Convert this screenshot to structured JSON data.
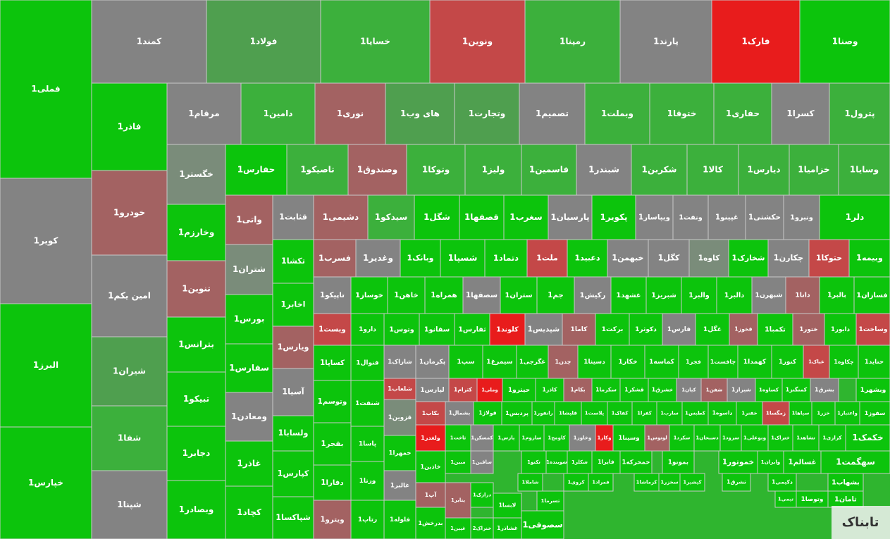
{
  "tiles": [
    {
      "label": "فملی1",
      "color": "#0cc40c"
    },
    {
      "label": "کویر1",
      "color": "#838383"
    },
    {
      "label": "البرز1",
      "color": "#0cc40c"
    },
    {
      "label": "خپارس1",
      "color": "#0cc40c"
    },
    {
      "label": "کمند1",
      "color": "#838383"
    },
    {
      "label": "فولاد1",
      "color": "#4f9f4f"
    },
    {
      "label": "خساپا1",
      "color": "#3cb03c"
    },
    {
      "label": "ونوین1",
      "color": "#c44848"
    },
    {
      "label": "رمپنا1",
      "color": "#3cb03c"
    },
    {
      "label": "پارند1",
      "color": "#838383"
    },
    {
      "label": "فارک1",
      "color": "#e81c1c"
    },
    {
      "label": "وصنا1",
      "color": "#0cc40c"
    },
    {
      "label": "فاذر1",
      "color": "#0cc40c"
    },
    {
      "label": "خودرو1",
      "color": "#a36262"
    },
    {
      "label": "امین یکم1",
      "color": "#838383"
    },
    {
      "label": "شیران1",
      "color": "#4f9f4f"
    },
    {
      "label": "شفا1",
      "color": "#3cb03c"
    },
    {
      "label": "شپنا1",
      "color": "#838383"
    },
    {
      "label": "مرقام1",
      "color": "#838383"
    },
    {
      "label": "دامین1",
      "color": "#3cb03c"
    },
    {
      "label": "نوری1",
      "color": "#a36262"
    },
    {
      "label": "های وب1",
      "color": "#4f9f4f"
    },
    {
      "label": "وتجارت1",
      "color": "#4f9f4f"
    },
    {
      "label": "تصمیم1",
      "color": "#838383"
    },
    {
      "label": "وبملت1",
      "color": "#3cb03c"
    },
    {
      "label": "ختوقا1",
      "color": "#3cb03c"
    },
    {
      "label": "حفاری1",
      "color": "#3cb03c"
    },
    {
      "label": "کسرا1",
      "color": "#838383"
    },
    {
      "label": "پترول1",
      "color": "#3cb03c"
    },
    {
      "label": "خگستر1",
      "color": "#7a8c7a"
    },
    {
      "label": "وخارزم1",
      "color": "#0cc40c"
    },
    {
      "label": "تنوین1",
      "color": "#a36262"
    },
    {
      "label": "بترانس1",
      "color": "#0cc40c"
    },
    {
      "label": "تبیکو1",
      "color": "#0cc40c"
    },
    {
      "label": "دجابر1",
      "color": "#0cc40c"
    },
    {
      "label": "وبصادر1",
      "color": "#0cc40c"
    },
    {
      "label": "حفارس1",
      "color": "#0cc40c"
    },
    {
      "label": "تاصیکو1",
      "color": "#3cb03c"
    },
    {
      "label": "وصندوق1",
      "color": "#a36262"
    },
    {
      "label": "وتوکا1",
      "color": "#3cb03c"
    },
    {
      "label": "ولیز1",
      "color": "#3cb03c"
    },
    {
      "label": "فاسمین1",
      "color": "#3cb03c"
    },
    {
      "label": "شبندر1",
      "color": "#838383"
    },
    {
      "label": "شکربن1",
      "color": "#3cb03c"
    },
    {
      "label": "کالا1",
      "color": "#3cb03c"
    },
    {
      "label": "دیارس1",
      "color": "#3cb03c"
    },
    {
      "label": "خزامیا1",
      "color": "#3cb03c"
    },
    {
      "label": "وسایا1",
      "color": "#3cb03c"
    },
    {
      "label": "واتی1",
      "color": "#a36262"
    },
    {
      "label": "شتران1",
      "color": "#7a8c7a"
    },
    {
      "label": "بورس1",
      "color": "#0cc40c"
    },
    {
      "label": "سفارس1",
      "color": "#0cc40c"
    },
    {
      "label": "ومعادن1",
      "color": "#838383"
    },
    {
      "label": "غاذر1",
      "color": "#0cc40c"
    },
    {
      "label": "کچاد1",
      "color": "#0cc40c"
    },
    {
      "label": "قثابت1",
      "color": "#838383"
    },
    {
      "label": "تکشا1",
      "color": "#0cc40c"
    },
    {
      "label": "اخابر1",
      "color": "#0cc40c"
    },
    {
      "label": "ویارس1",
      "color": "#a36262"
    },
    {
      "label": "آسیا1",
      "color": "#838383"
    },
    {
      "label": "ولسابا1",
      "color": "#0cc40c"
    },
    {
      "label": "کپارس1",
      "color": "#0cc40c"
    },
    {
      "label": "شپاکسا1",
      "color": "#0cc40c"
    },
    {
      "label": "دشیمی1",
      "color": "#a36262"
    },
    {
      "label": "سیدکو1",
      "color": "#3cb03c"
    },
    {
      "label": "شگل1",
      "color": "#0cc40c"
    },
    {
      "label": "قصفها1",
      "color": "#0cc40c"
    },
    {
      "label": "سغرب1",
      "color": "#0cc40c"
    },
    {
      "label": "پارسیان1",
      "color": "#838383"
    },
    {
      "label": "پکویر1",
      "color": "#0cc40c"
    },
    {
      "label": "ویپاسار1",
      "color": "#838383"
    },
    {
      "label": "ونفت1",
      "color": "#838383"
    },
    {
      "label": "غپینو1",
      "color": "#838383"
    },
    {
      "label": "حکشتی1",
      "color": "#838383"
    },
    {
      "label": "ونیرو1",
      "color": "#838383"
    },
    {
      "label": "دلر1",
      "color": "#0cc40c"
    },
    {
      "label": "فسرب1",
      "color": "#a36262"
    },
    {
      "label": "وغدیر1",
      "color": "#838383"
    },
    {
      "label": "وبانک1",
      "color": "#0cc40c"
    },
    {
      "label": "شسپا1",
      "color": "#0cc40c"
    },
    {
      "label": "دتماد1",
      "color": "#0cc40c"
    },
    {
      "label": "ملت1",
      "color": "#c44848"
    },
    {
      "label": "دعبید1",
      "color": "#0cc40c"
    },
    {
      "label": "خبهمن1",
      "color": "#838383"
    },
    {
      "label": "کگل1",
      "color": "#838383"
    },
    {
      "label": "کاوه1",
      "color": "#7a8c7a"
    },
    {
      "label": "شخارک1",
      "color": "#0cc40c"
    },
    {
      "label": "چکارن1",
      "color": "#838383"
    },
    {
      "label": "حتوکا1",
      "color": "#c44848"
    },
    {
      "label": "وبیمه1",
      "color": "#0cc40c"
    },
    {
      "label": "تاپیکو1",
      "color": "#838383"
    },
    {
      "label": "خوساز1",
      "color": "#0cc40c"
    },
    {
      "label": "خاهن1",
      "color": "#0cc40c"
    },
    {
      "label": "همراه1",
      "color": "#0cc40c"
    },
    {
      "label": "سصفها1",
      "color": "#838383"
    },
    {
      "label": "ستران1",
      "color": "#0cc40c"
    },
    {
      "label": "جم1",
      "color": "#0cc40c"
    },
    {
      "label": "رکیش1",
      "color": "#838383"
    },
    {
      "label": "غشهد1",
      "color": "#0cc40c"
    },
    {
      "label": "شبریز1",
      "color": "#0cc40c"
    },
    {
      "label": "والبر1",
      "color": "#0cc40c"
    },
    {
      "label": "دالبر1",
      "color": "#0cc40c"
    },
    {
      "label": "شبهرن1",
      "color": "#838383"
    },
    {
      "label": "دانا1",
      "color": "#a36262"
    },
    {
      "label": "بالبر1",
      "color": "#0cc40c"
    },
    {
      "label": "فسازان1",
      "color": "#0cc40c"
    },
    {
      "label": "ویست1",
      "color": "#c44848"
    },
    {
      "label": "دارو1",
      "color": "#0cc40c"
    },
    {
      "label": "وتوس1",
      "color": "#0cc40c"
    },
    {
      "label": "سفانو1",
      "color": "#0cc40c"
    },
    {
      "label": "ثفارس1",
      "color": "#0cc40c"
    },
    {
      "label": "کلوند1",
      "color": "#e81c1c"
    },
    {
      "label": "شپدیس1",
      "color": "#838383"
    },
    {
      "label": "کاما1",
      "color": "#a36262"
    },
    {
      "label": "برکت1",
      "color": "#0cc40c"
    },
    {
      "label": "دکوثر1",
      "color": "#0cc40c"
    },
    {
      "label": "فارس1",
      "color": "#838383"
    },
    {
      "label": "غگل1",
      "color": "#0cc40c"
    },
    {
      "label": "فخوز1",
      "color": "#a36262"
    },
    {
      "label": "تکمبا1",
      "color": "#0cc40c"
    },
    {
      "label": "ختور1",
      "color": "#a36262"
    },
    {
      "label": "دابور1",
      "color": "#0cc40c"
    },
    {
      "label": "وساخت1",
      "color": "#c44848"
    },
    {
      "label": "کساپا1",
      "color": "#0cc40c"
    },
    {
      "label": "فنوال1",
      "color": "#0cc40c"
    },
    {
      "label": "شاراک1",
      "color": "#838383"
    },
    {
      "label": "پکرمان1",
      "color": "#838383"
    },
    {
      "label": "سپ1",
      "color": "#0cc40c"
    },
    {
      "label": "سیمرغ1",
      "color": "#0cc40c"
    },
    {
      "label": "غگرجی1",
      "color": "#0cc40c"
    },
    {
      "label": "چدن1",
      "color": "#a36262"
    },
    {
      "label": "دسینا1",
      "color": "#0cc40c"
    },
    {
      "label": "خکار1",
      "color": "#0cc40c"
    },
    {
      "label": "کماسه1",
      "color": "#0cc40c"
    },
    {
      "label": "فجر1",
      "color": "#0cc40c"
    },
    {
      "label": "چافست1",
      "color": "#0cc40c"
    },
    {
      "label": "کهمدا1",
      "color": "#0cc40c"
    },
    {
      "label": "کنور1",
      "color": "#0cc40c"
    },
    {
      "label": "غپاک1",
      "color": "#c44848"
    },
    {
      "label": "چکاوه1",
      "color": "#0cc40c"
    },
    {
      "label": "حتاید1",
      "color": "#0cc40c"
    },
    {
      "label": "شلعاب1",
      "color": "#c44848"
    },
    {
      "label": "لپارس1",
      "color": "#838383"
    },
    {
      "label": "کترام1",
      "color": "#c44848"
    },
    {
      "label": "وملی1",
      "color": "#e81c1c"
    },
    {
      "label": "حیترو1",
      "color": "#0cc40c"
    },
    {
      "label": "کاذر1",
      "color": "#0cc40c"
    },
    {
      "label": "بکام1",
      "color": "#a36262"
    },
    {
      "label": "سکرما1",
      "color": "#0cc40c"
    },
    {
      "label": "قشکر1",
      "color": "#0cc40c"
    },
    {
      "label": "خشرق1",
      "color": "#0cc40c"
    },
    {
      "label": "کیان1",
      "color": "#838383"
    },
    {
      "label": "شفن1",
      "color": "#a36262"
    },
    {
      "label": "شیراز1",
      "color": "#838383"
    },
    {
      "label": "کساوه1",
      "color": "#0cc40c"
    },
    {
      "label": "کمنگنز1",
      "color": "#0cc40c"
    },
    {
      "label": "بشرق1",
      "color": "#838383"
    },
    {
      "label": "وبشهر1",
      "color": "#0cc40c"
    },
    {
      "label": "قزوین1",
      "color": "#7a8c7a"
    },
    {
      "label": "بکاب1",
      "color": "#c44848"
    },
    {
      "label": "بشمال1",
      "color": "#838383"
    },
    {
      "label": "فولاژ1",
      "color": "#0cc40c"
    },
    {
      "label": "پردیس1",
      "color": "#0cc40c"
    },
    {
      "label": "رانفور1",
      "color": "#0cc40c"
    },
    {
      "label": "قلیشا1",
      "color": "#0cc40c"
    },
    {
      "label": "پلاست1",
      "color": "#0cc40c"
    },
    {
      "label": "کفاک1",
      "color": "#0cc40c"
    },
    {
      "label": "کفرا1",
      "color": "#0cc40c"
    },
    {
      "label": "سارب1",
      "color": "#0cc40c"
    },
    {
      "label": "کطبس1",
      "color": "#0cc40c"
    },
    {
      "label": "داسوه1",
      "color": "#0cc40c"
    },
    {
      "label": "خفنر1",
      "color": "#0cc40c"
    },
    {
      "label": "زمگسا1",
      "color": "#c44848"
    },
    {
      "label": "سپاها1",
      "color": "#0cc40c"
    },
    {
      "label": "خزر1",
      "color": "#0cc40c"
    },
    {
      "label": "واعتبار1",
      "color": "#0cc40c"
    },
    {
      "label": "سفوز1",
      "color": "#0cc40c"
    },
    {
      "label": "ولغدر1",
      "color": "#e81c1c"
    },
    {
      "label": "ثاخت1",
      "color": "#0cc40c"
    },
    {
      "label": "کمسکن1",
      "color": "#838383"
    },
    {
      "label": "پارس1",
      "color": "#0cc40c"
    },
    {
      "label": "ساروم1",
      "color": "#0cc40c"
    },
    {
      "label": "کاومج1",
      "color": "#0cc40c"
    },
    {
      "label": "وخاور1",
      "color": "#838383"
    },
    {
      "label": "وکار1",
      "color": "#e81c1c"
    },
    {
      "label": "وسینا1",
      "color": "#0cc40c"
    },
    {
      "label": "لوتوس1",
      "color": "#a36262"
    },
    {
      "label": "سکرد1",
      "color": "#0cc40c"
    },
    {
      "label": "دسبحان1",
      "color": "#0cc40c"
    },
    {
      "label": "سرود1",
      "color": "#0cc40c"
    },
    {
      "label": "وبوعلی1",
      "color": "#0cc40c"
    },
    {
      "label": "ختراک1",
      "color": "#0cc40c"
    },
    {
      "label": "تشاهد1",
      "color": "#0cc40c"
    },
    {
      "label": "کرازی1",
      "color": "#0cc40c"
    },
    {
      "label": "خکمک1",
      "color": "#0cc40c"
    },
    {
      "label": "خمهرا1",
      "color": "#0cc40c"
    },
    {
      "label": "غالبر1",
      "color": "#838383"
    },
    {
      "label": "فلوله1",
      "color": "#0cc40c"
    },
    {
      "label": "وتوسم1",
      "color": "#0cc40c"
    },
    {
      "label": "بفجر1",
      "color": "#0cc40c"
    },
    {
      "label": "دفارا1",
      "color": "#0cc40c"
    },
    {
      "label": "ویترو1",
      "color": "#a36262"
    },
    {
      "label": "شنفت1",
      "color": "#0cc40c"
    },
    {
      "label": "پاسا1",
      "color": "#0cc40c"
    },
    {
      "label": "ورنا1",
      "color": "#0cc40c"
    },
    {
      "label": "رتاپ1",
      "color": "#0cc40c"
    },
    {
      "label": "خاذین1",
      "color": "#0cc40c"
    },
    {
      "label": "مبین1",
      "color": "#0cc40c"
    },
    {
      "label": "ساقین1",
      "color": "#838383"
    },
    {
      "label": "تکنو1",
      "color": "#0cc40c"
    },
    {
      "label": "شوینده1",
      "color": "#0cc40c"
    },
    {
      "label": "شکلر1",
      "color": "#0cc40c"
    },
    {
      "label": "فایرا1",
      "color": "#0cc40c"
    },
    {
      "label": "خمحرکه1",
      "color": "#0cc40c"
    },
    {
      "label": "بموتو1",
      "color": "#0cc40c"
    },
    {
      "label": "خموتور1",
      "color": "#0cc40c"
    },
    {
      "label": "وایران1",
      "color": "#0cc40c"
    },
    {
      "label": "غسالم1",
      "color": "#0cc40c"
    },
    {
      "label": "سهگمت1",
      "color": "#0cc40c"
    },
    {
      "label": "شاملا1",
      "color": "#0cc40c"
    },
    {
      "label": "کروی1",
      "color": "#0cc40c"
    },
    {
      "label": "فمراد1",
      "color": "#0cc40c"
    },
    {
      "label": "کرماشا1",
      "color": "#0cc40c"
    },
    {
      "label": "سخزر1",
      "color": "#0cc40c"
    },
    {
      "label": "کپشیر1",
      "color": "#0cc40c"
    },
    {
      "label": "تشرق1",
      "color": "#0cc40c"
    },
    {
      "label": "دکیمی1",
      "color": "#0cc40c"
    },
    {
      "label": "بشهاب1",
      "color": "#0cc40c"
    },
    {
      "label": "آپ1",
      "color": "#a36262"
    },
    {
      "label": "پتایر1",
      "color": "#a36262"
    },
    {
      "label": "درازک1",
      "color": "#0cc40c"
    },
    {
      "label": "لابسا1",
      "color": "#0cc40c"
    },
    {
      "label": "تسرما1",
      "color": "#0cc40c"
    },
    {
      "label": "بدرخش1",
      "color": "#0cc40c"
    },
    {
      "label": "غپین1",
      "color": "#0cc40c"
    },
    {
      "label": "خنراک2",
      "color": "#0cc40c"
    },
    {
      "label": "غشاذر1",
      "color": "#0cc40c"
    },
    {
      "label": "سصوفی1",
      "color": "#0cc40c"
    },
    {
      "label": "ثامان1",
      "color": "#0cc40c"
    },
    {
      "label": "وتوصا1",
      "color": "#0cc40c"
    },
    {
      "label": "تیمی1",
      "color": "#0cc40c"
    }
  ],
  "watermark": "تابناک"
}
